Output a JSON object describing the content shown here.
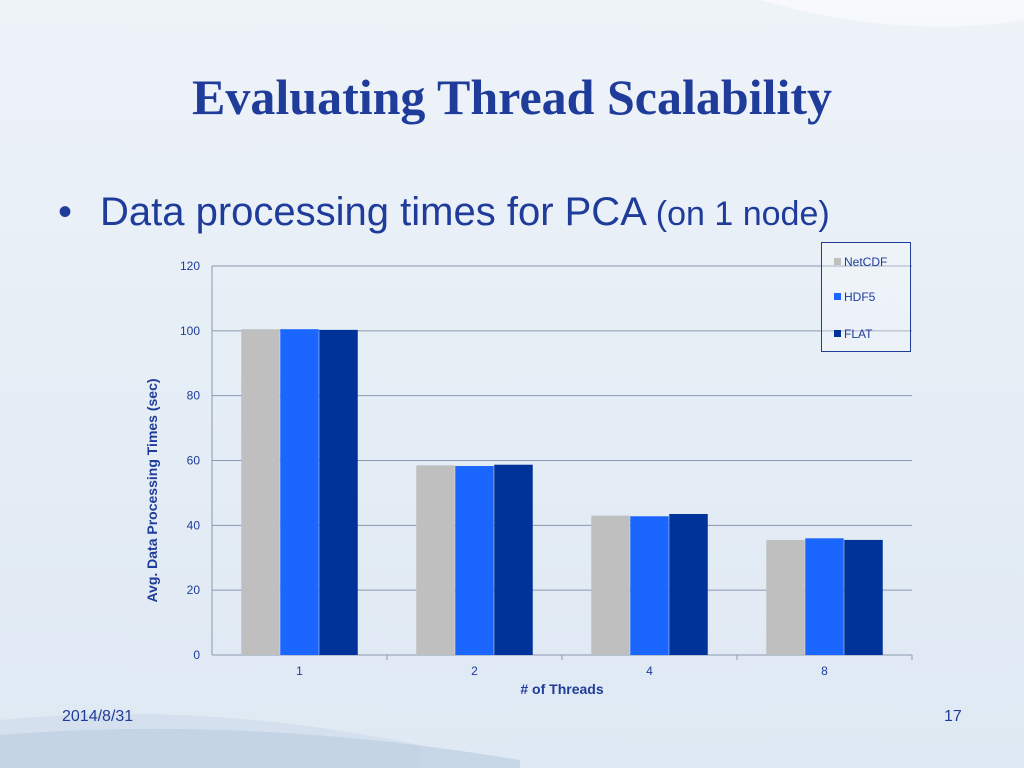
{
  "slide": {
    "title": "Evaluating Thread Scalability",
    "bullet_symbol": "•",
    "bullet_main": "Data processing times for PCA",
    "bullet_sub": "(on 1 node)",
    "date": "2014/8/31",
    "page_number": "17"
  },
  "chart_data": {
    "type": "bar",
    "title": "",
    "xlabel": "# of Threads",
    "ylabel": "Avg. Data Processing Times (sec)",
    "categories": [
      "1",
      "2",
      "4",
      "8"
    ],
    "ylim": [
      0,
      120
    ],
    "yticks": [
      0,
      20,
      40,
      60,
      80,
      100,
      120
    ],
    "grid": true,
    "legend_position": "top-right",
    "series": [
      {
        "name": "NetCDF",
        "color": "#bfbfbf",
        "values": [
          100.5,
          58.5,
          43.0,
          35.5
        ]
      },
      {
        "name": "HDF5",
        "color": "#1a66ff",
        "values": [
          100.5,
          58.3,
          42.8,
          36.0
        ]
      },
      {
        "name": "FLAT",
        "color": "#003399",
        "values": [
          100.3,
          58.7,
          43.5,
          35.5
        ]
      }
    ]
  }
}
